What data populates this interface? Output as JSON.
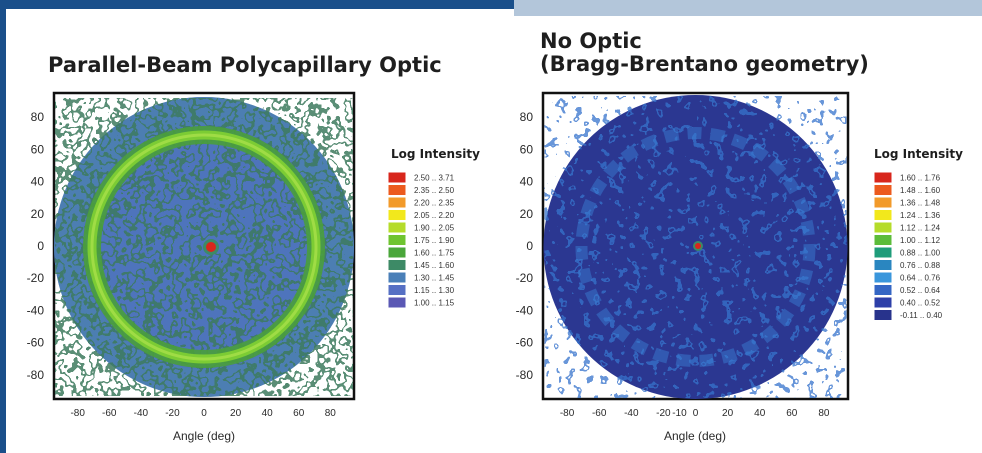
{
  "chart_data": [
    {
      "type": "heatmap",
      "id": "polycapillary",
      "title": "Parallel-Beam Polycapillary Optic",
      "title_lines": [
        "Parallel-Beam Polycapillary Optic"
      ],
      "xlabel": "Angle (deg)",
      "ylabel": "",
      "xlim": [
        -95,
        95
      ],
      "ylim": [
        -95,
        95
      ],
      "x_ticks": [
        "-80",
        "-60",
        "-40",
        "-20",
        "0",
        "20",
        "40",
        "60",
        "80"
      ],
      "y_ticks": [
        "80",
        "60",
        "40",
        "20",
        "0",
        "-20",
        "-40",
        "-60",
        "-80"
      ],
      "x_tick_values": [
        -80,
        -60,
        -40,
        -20,
        0,
        20,
        40,
        60,
        80
      ],
      "y_tick_values": [
        80,
        60,
        40,
        20,
        0,
        -20,
        -40,
        -60,
        -80
      ],
      "polar_extent_deg": 90,
      "ring_radius_deg": 68,
      "center_spot": [
        -6,
        0
      ],
      "grid": false,
      "legend_position": "right",
      "legend_title": "Log Intensity",
      "legend": [
        {
          "range": "2.50 .. 3.71",
          "color": "#d8261c"
        },
        {
          "range": "2.35 .. 2.50",
          "color": "#ec5a1e"
        },
        {
          "range": "2.20 .. 2.35",
          "color": "#f29a2a"
        },
        {
          "range": "2.05 .. 2.20",
          "color": "#f2e81c"
        },
        {
          "range": "1.90 .. 2.05",
          "color": "#b5dc2a"
        },
        {
          "range": "1.75 .. 1.90",
          "color": "#6fc430"
        },
        {
          "range": "1.60 .. 1.75",
          "color": "#4aa63a"
        },
        {
          "range": "1.45 .. 1.60",
          "color": "#3d8a66"
        },
        {
          "range": "1.30 .. 1.45",
          "color": "#4a7fb8"
        },
        {
          "range": "1.15 .. 1.30",
          "color": "#5670c4"
        },
        {
          "range": "1.00 .. 1.15",
          "color": "#5a58b4"
        }
      ]
    },
    {
      "type": "heatmap",
      "id": "no-optic",
      "title": "No Optic (Bragg-Brentano geometry)",
      "title_lines": [
        "No Optic",
        "(Bragg-Brentano geometry)"
      ],
      "xlabel": "Angle (deg)",
      "ylabel": "",
      "xlim": [
        -95,
        95
      ],
      "ylim": [
        -95,
        95
      ],
      "x_ticks": [
        "-80",
        "-60",
        "-40",
        "-20",
        "-10",
        "0",
        "20",
        "40",
        "60",
        "80"
      ],
      "y_ticks": [
        "80",
        "60",
        "40",
        "20",
        "0",
        "-20",
        "-40",
        "-60",
        "-80"
      ],
      "x_tick_values": [
        -80,
        -60,
        -40,
        -20,
        -10,
        0,
        20,
        40,
        60,
        80
      ],
      "y_tick_values": [
        80,
        60,
        40,
        20,
        0,
        -20,
        -40,
        -60,
        -80
      ],
      "polar_extent_deg": 90,
      "ring_radius_deg": 68,
      "center_spot": [
        -6,
        0
      ],
      "grid": false,
      "legend_position": "right",
      "legend_title": "Log Intensity",
      "legend": [
        {
          "range": "1.60 .. 1.76",
          "color": "#d8261c"
        },
        {
          "range": "1.48 .. 1.60",
          "color": "#ec5a1e"
        },
        {
          "range": "1.36 .. 1.48",
          "color": "#f29a2a"
        },
        {
          "range": "1.24 .. 1.36",
          "color": "#f2e81c"
        },
        {
          "range": "1.12 .. 1.24",
          "color": "#b5dc2a"
        },
        {
          "range": "1.00 .. 1.12",
          "color": "#5cbc3a"
        },
        {
          "range": "0.88 .. 1.00",
          "color": "#1f9c7a"
        },
        {
          "range": "0.76 .. 0.88",
          "color": "#2a86c0"
        },
        {
          "range": "0.64 .. 0.76",
          "color": "#3a96dc"
        },
        {
          "range": "0.52 .. 0.64",
          "color": "#3466c4"
        },
        {
          "range": "0.40 .. 0.52",
          "color": "#2d3fa8"
        },
        {
          "range": "-0.11 .. 0.40",
          "color": "#28338c"
        }
      ]
    }
  ],
  "colors": {
    "frame_accent": "#1a4f8a",
    "frame_accent_light": "#b3c6da",
    "title_text": "#1e1e1e"
  }
}
